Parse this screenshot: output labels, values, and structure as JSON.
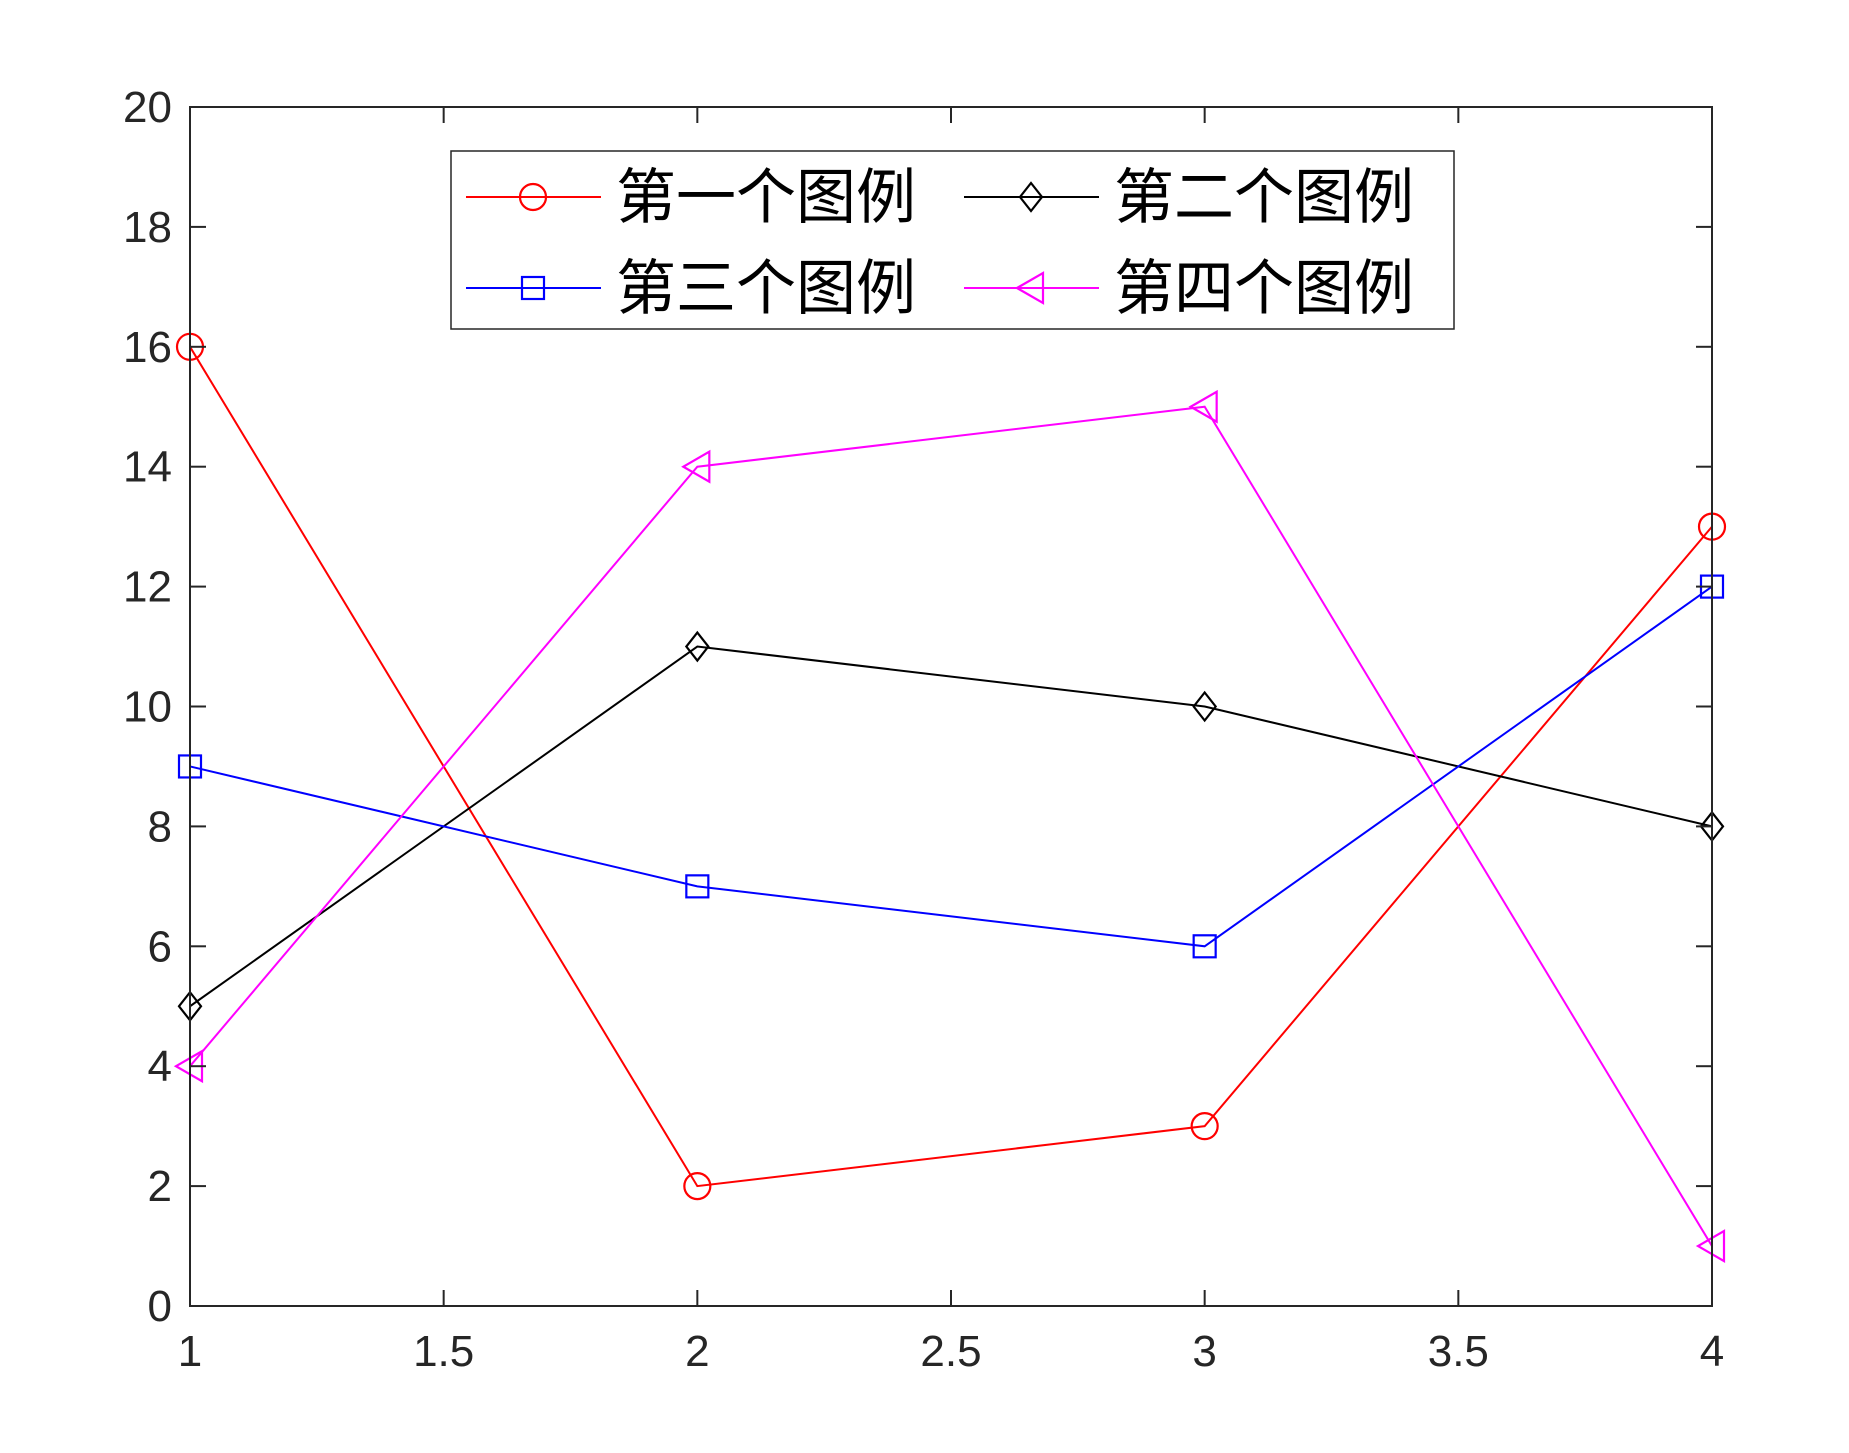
{
  "chart_data": {
    "type": "line",
    "title": "",
    "xlabel": "",
    "ylabel": "",
    "x": [
      1,
      2,
      3,
      4
    ],
    "xlim": [
      1,
      4
    ],
    "ylim": [
      0,
      20
    ],
    "x_ticks": [
      "1",
      "1.5",
      "2",
      "2.5",
      "3",
      "3.5",
      "4"
    ],
    "y_ticks": [
      "0",
      "2",
      "4",
      "6",
      "8",
      "10",
      "12",
      "14",
      "16",
      "18",
      "20"
    ],
    "grid": false,
    "legend_position": "top-center",
    "legend_columns": 2,
    "series": [
      {
        "name": "第一个图例",
        "values": [
          16,
          2,
          3,
          13
        ],
        "color": "#ff0000",
        "marker": "circle"
      },
      {
        "name": "第二个图例",
        "values": [
          5,
          11,
          10,
          8
        ],
        "color": "#000000",
        "marker": "diamond"
      },
      {
        "name": "第三个图例",
        "values": [
          9,
          7,
          6,
          12
        ],
        "color": "#0000ff",
        "marker": "square"
      },
      {
        "name": "第四个图例",
        "values": [
          4,
          14,
          15,
          1
        ],
        "color": "#ff00ff",
        "marker": "triangle-left"
      }
    ]
  }
}
